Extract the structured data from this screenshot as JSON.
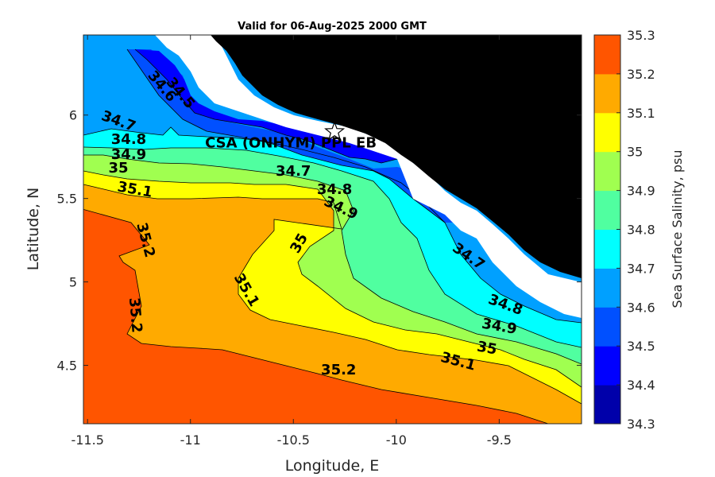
{
  "title": "Valid for 06-Aug-2025 2000 GMT",
  "chart_data": {
    "type": "contour-map",
    "xlabel": "Longitude, E",
    "ylabel": "Latitude, N",
    "xlim": [
      -11.52,
      -9.1
    ],
    "ylim": [
      4.15,
      6.48
    ],
    "xticks": [
      -11.5,
      -11,
      -10.5,
      -10,
      -9.5
    ],
    "yticks": [
      4.5,
      5,
      5.5,
      6
    ],
    "xtick_labels": [
      "-11.5",
      "-11",
      "-10.5",
      "-10",
      "-9.5"
    ],
    "ytick_labels": [
      "4.5",
      "5",
      "5.5",
      "6"
    ],
    "colorbar": {
      "label": "Sea Surface Salinity, psu",
      "levels": [
        34.3,
        34.4,
        34.5,
        34.6,
        34.7,
        34.8,
        34.9,
        35,
        35.1,
        35.2,
        35.3
      ],
      "tick_labels": [
        "34.3",
        "34.4",
        "34.5",
        "34.6",
        "34.7",
        "34.8",
        "34.9",
        "35",
        "35.1",
        "35.2",
        "35.3"
      ],
      "colors": [
        "#0000aa",
        "#0000ff",
        "#0050ff",
        "#00a0ff",
        "#00ffff",
        "#50ffa0",
        "#a0ff50",
        "#ffff00",
        "#ffaa00",
        "#ff5500"
      ]
    },
    "contour_labels": [
      {
        "text": "34.5",
        "lon": -11.05,
        "lat": 6.13,
        "angle": 50
      },
      {
        "text": "34.6",
        "lon": -11.14,
        "lat": 6.17,
        "angle": 50
      },
      {
        "text": "34.7",
        "lon": -11.35,
        "lat": 5.96,
        "angle": 20
      },
      {
        "text": "34.8",
        "lon": -11.3,
        "lat": 5.85,
        "angle": 0
      },
      {
        "text": "34.9",
        "lon": -11.3,
        "lat": 5.76,
        "angle": 0
      },
      {
        "text": "35",
        "lon": -11.35,
        "lat": 5.68,
        "angle": 0
      },
      {
        "text": "35.1",
        "lon": -11.27,
        "lat": 5.55,
        "angle": 10
      },
      {
        "text": "35.2",
        "lon": -11.22,
        "lat": 5.25,
        "angle": 75
      },
      {
        "text": "35.2",
        "lon": -11.27,
        "lat": 4.8,
        "angle": 85
      },
      {
        "text": "35.1",
        "lon": -10.73,
        "lat": 4.95,
        "angle": 60
      },
      {
        "text": "35",
        "lon": -10.47,
        "lat": 5.23,
        "angle": -60
      },
      {
        "text": "34.9",
        "lon": -10.27,
        "lat": 5.44,
        "angle": 25
      },
      {
        "text": "34.8",
        "lon": -10.3,
        "lat": 5.55,
        "angle": 0
      },
      {
        "text": "34.7",
        "lon": -10.5,
        "lat": 5.66,
        "angle": 0
      },
      {
        "text": "34.7",
        "lon": -9.65,
        "lat": 5.15,
        "angle": 35
      },
      {
        "text": "34.8",
        "lon": -9.47,
        "lat": 4.86,
        "angle": 20
      },
      {
        "text": "34.9",
        "lon": -9.5,
        "lat": 4.73,
        "angle": 10
      },
      {
        "text": "35",
        "lon": -9.56,
        "lat": 4.6,
        "angle": 10
      },
      {
        "text": "35.1",
        "lon": -9.7,
        "lat": 4.52,
        "angle": 15
      },
      {
        "text": "35.2",
        "lon": -10.28,
        "lat": 4.47,
        "angle": 0
      }
    ],
    "site": {
      "label": "CSA (ONHYM) PPL EB",
      "lon": -10.3,
      "lat": 5.9
    }
  }
}
